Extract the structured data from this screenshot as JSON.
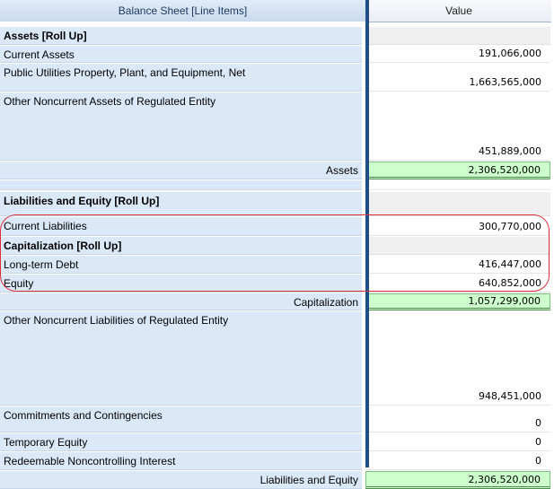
{
  "header": {
    "label_column": "Balance Sheet [Line Items]",
    "value_column": "Value"
  },
  "rows": [
    {
      "label": "Assets [Roll Up]",
      "value": "",
      "kind": "rollup"
    },
    {
      "label": "Current Assets",
      "value": "191,066,000",
      "kind": "item"
    },
    {
      "label": "Public Utilities Property, Plant, and Equipment, Net",
      "value": "1,663,565,000",
      "kind": "item"
    },
    {
      "label": "Other Noncurrent Assets of Regulated Entity",
      "value": "451,889,000",
      "kind": "item"
    },
    {
      "label": "Assets",
      "value": "2,306,520,000",
      "kind": "total"
    },
    {
      "label": "",
      "value": "",
      "kind": "blank"
    },
    {
      "label": "Liabilities and Equity [Roll Up]",
      "value": "",
      "kind": "rollup"
    },
    {
      "label": "Current Liabilities",
      "value": "300,770,000",
      "kind": "item"
    },
    {
      "label": "Capitalization [Roll Up]",
      "value": "",
      "kind": "rollup"
    },
    {
      "label": "Long-term Debt",
      "value": "416,447,000",
      "kind": "item"
    },
    {
      "label": "Equity",
      "value": "640,852,000",
      "kind": "item"
    },
    {
      "label": "Capitalization",
      "value": "1,057,299,000",
      "kind": "total"
    },
    {
      "label": "Other Noncurrent Liabilities of Regulated Entity",
      "value": "948,451,000",
      "kind": "item"
    },
    {
      "label": "Commitments and Contingencies",
      "value": "0",
      "kind": "item"
    },
    {
      "label": "Temporary Equity",
      "value": "0",
      "kind": "item"
    },
    {
      "label": "Redeemable Noncontrolling Interest",
      "value": "0",
      "kind": "item"
    },
    {
      "label": "Liabilities and Equity",
      "value": "2,306,520,000",
      "kind": "total"
    }
  ],
  "colors": {
    "label_bg": "#dbe8f8",
    "total_bg": "#ccffcc",
    "rollup_bg": "#f0f0f0",
    "highlight": "#e0303a"
  }
}
